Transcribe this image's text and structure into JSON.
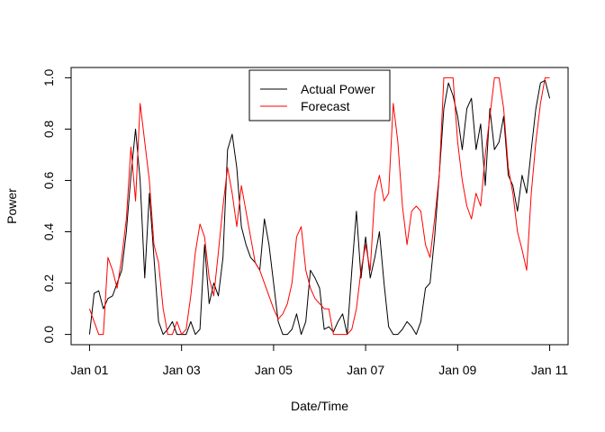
{
  "chart_data": {
    "type": "line",
    "title": "",
    "xlabel": "Date/Time",
    "ylabel": "Power",
    "x_ticks": [
      {
        "value": 0,
        "label": "Jan 01"
      },
      {
        "value": 2,
        "label": "Jan 03"
      },
      {
        "value": 4,
        "label": "Jan 05"
      },
      {
        "value": 6,
        "label": "Jan 07"
      },
      {
        "value": 8,
        "label": "Jan 09"
      },
      {
        "value": 10,
        "label": "Jan 11"
      }
    ],
    "y_ticks": [
      {
        "value": 0.0,
        "label": "0.0"
      },
      {
        "value": 0.2,
        "label": "0.2"
      },
      {
        "value": 0.4,
        "label": "0.4"
      },
      {
        "value": 0.6,
        "label": "0.6"
      },
      {
        "value": 0.8,
        "label": "0.8"
      },
      {
        "value": 1.0,
        "label": "1.0"
      }
    ],
    "xlim": [
      -0.4,
      10.4
    ],
    "ylim": [
      -0.04,
      1.04
    ],
    "grid": false,
    "legend_position": "top-center",
    "series": [
      {
        "name": "Actual Power",
        "color": "#000000",
        "x": [
          0.0,
          0.1,
          0.2,
          0.3,
          0.4,
          0.5,
          0.6,
          0.7,
          0.8,
          0.9,
          1.0,
          1.1,
          1.2,
          1.3,
          1.4,
          1.5,
          1.6,
          1.7,
          1.8,
          1.9,
          2.0,
          2.1,
          2.2,
          2.3,
          2.4,
          2.5,
          2.6,
          2.7,
          2.8,
          2.9,
          3.0,
          3.1,
          3.2,
          3.3,
          3.4,
          3.5,
          3.6,
          3.7,
          3.8,
          3.9,
          4.0,
          4.1,
          4.2,
          4.3,
          4.4,
          4.5,
          4.6,
          4.7,
          4.8,
          4.9,
          5.0,
          5.1,
          5.2,
          5.3,
          5.4,
          5.5,
          5.6,
          5.7,
          5.8,
          5.9,
          6.0,
          6.1,
          6.2,
          6.3,
          6.4,
          6.5,
          6.6,
          6.7,
          6.8,
          6.9,
          7.0,
          7.1,
          7.2,
          7.3,
          7.4,
          7.5,
          7.6,
          7.7,
          7.8,
          7.9,
          8.0,
          8.1,
          8.2,
          8.3,
          8.4,
          8.5,
          8.6,
          8.7,
          8.8,
          8.9,
          9.0,
          9.1,
          9.2,
          9.3,
          9.4,
          9.5,
          9.6,
          9.7,
          9.8,
          9.9,
          10.0
        ],
        "y": [
          0.0,
          0.16,
          0.17,
          0.1,
          0.14,
          0.15,
          0.2,
          0.25,
          0.4,
          0.62,
          0.8,
          0.6,
          0.22,
          0.55,
          0.3,
          0.05,
          0.0,
          0.02,
          0.05,
          0.0,
          0.0,
          0.0,
          0.05,
          0.0,
          0.02,
          0.35,
          0.12,
          0.2,
          0.15,
          0.3,
          0.72,
          0.78,
          0.65,
          0.42,
          0.35,
          0.3,
          0.28,
          0.25,
          0.45,
          0.35,
          0.2,
          0.05,
          0.0,
          0.0,
          0.02,
          0.08,
          0.0,
          0.05,
          0.25,
          0.22,
          0.18,
          0.02,
          0.03,
          0.01,
          0.05,
          0.08,
          0.0,
          0.25,
          0.48,
          0.22,
          0.38,
          0.22,
          0.3,
          0.4,
          0.2,
          0.03,
          0.0,
          0.0,
          0.02,
          0.05,
          0.03,
          0.0,
          0.05,
          0.18,
          0.2,
          0.38,
          0.62,
          0.88,
          0.98,
          0.93,
          0.85,
          0.72,
          0.88,
          0.92,
          0.72,
          0.82,
          0.58,
          0.88,
          0.72,
          0.75,
          0.85,
          0.62,
          0.58,
          0.48,
          0.62,
          0.55,
          0.72,
          0.88,
          0.98,
          0.99,
          0.92
        ]
      },
      {
        "name": "Forecast",
        "color": "#ff0000",
        "x": [
          0.0,
          0.1,
          0.2,
          0.3,
          0.4,
          0.5,
          0.6,
          0.7,
          0.8,
          0.9,
          1.0,
          1.1,
          1.2,
          1.3,
          1.4,
          1.5,
          1.6,
          1.7,
          1.8,
          1.9,
          2.0,
          2.1,
          2.2,
          2.3,
          2.4,
          2.5,
          2.6,
          2.7,
          2.8,
          2.9,
          3.0,
          3.1,
          3.2,
          3.3,
          3.4,
          3.5,
          3.6,
          3.7,
          3.8,
          3.9,
          4.0,
          4.1,
          4.2,
          4.3,
          4.4,
          4.5,
          4.6,
          4.7,
          4.8,
          4.9,
          5.0,
          5.1,
          5.2,
          5.3,
          5.4,
          5.5,
          5.6,
          5.7,
          5.8,
          5.9,
          6.0,
          6.1,
          6.2,
          6.3,
          6.4,
          6.5,
          6.6,
          6.7,
          6.8,
          6.9,
          7.0,
          7.1,
          7.2,
          7.3,
          7.4,
          7.5,
          7.6,
          7.7,
          7.8,
          7.9,
          8.0,
          8.1,
          8.2,
          8.3,
          8.4,
          8.5,
          8.6,
          8.7,
          8.8,
          8.9,
          9.0,
          9.1,
          9.2,
          9.3,
          9.4,
          9.5,
          9.6,
          9.7,
          9.8,
          9.9,
          10.0
        ],
        "y": [
          0.1,
          0.05,
          0.0,
          0.0,
          0.3,
          0.25,
          0.18,
          0.3,
          0.45,
          0.73,
          0.52,
          0.9,
          0.75,
          0.6,
          0.35,
          0.28,
          0.1,
          0.0,
          0.0,
          0.05,
          0.0,
          0.02,
          0.15,
          0.32,
          0.43,
          0.38,
          0.22,
          0.15,
          0.32,
          0.5,
          0.65,
          0.55,
          0.42,
          0.58,
          0.48,
          0.38,
          0.28,
          0.25,
          0.2,
          0.15,
          0.1,
          0.06,
          0.08,
          0.12,
          0.2,
          0.38,
          0.42,
          0.25,
          0.18,
          0.14,
          0.12,
          0.1,
          0.1,
          0.0,
          0.0,
          0.0,
          0.0,
          0.02,
          0.1,
          0.25,
          0.35,
          0.25,
          0.55,
          0.62,
          0.52,
          0.55,
          0.9,
          0.75,
          0.5,
          0.35,
          0.48,
          0.5,
          0.48,
          0.35,
          0.3,
          0.45,
          0.62,
          1.0,
          1.0,
          1.0,
          0.75,
          0.6,
          0.5,
          0.45,
          0.55,
          0.5,
          0.7,
          0.85,
          1.0,
          1.0,
          0.88,
          0.65,
          0.55,
          0.4,
          0.33,
          0.25,
          0.55,
          0.75,
          0.9,
          1.0,
          1.0
        ]
      }
    ]
  }
}
